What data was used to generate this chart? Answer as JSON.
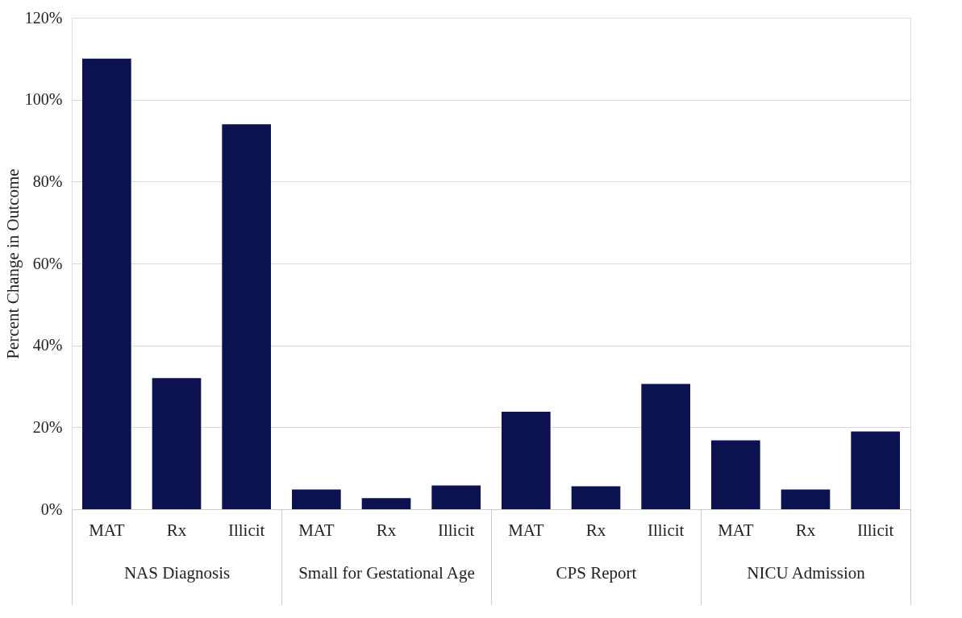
{
  "chart_data": {
    "type": "bar",
    "ylabel": "Percent Change in Outcome",
    "categories": [
      "NAS Diagnosis",
      "Small for Gestational Age",
      "CPS Report",
      "NICU Admission"
    ],
    "series": [
      {
        "name": "MAT",
        "color": "#0c1250",
        "values": [
          110,
          4.8,
          23.8,
          16.8
        ]
      },
      {
        "name": "Rx",
        "color": "#0c1250",
        "values": [
          32,
          2.7,
          5.6,
          4.8
        ]
      },
      {
        "name": "Illicit",
        "color": "#0c1250",
        "values": [
          94,
          5.8,
          30.6,
          19
        ]
      }
    ],
    "ylim": [
      0,
      120
    ],
    "yticks": [
      {
        "value": 0,
        "label": "0%"
      },
      {
        "value": 20,
        "label": "20%"
      },
      {
        "value": 40,
        "label": "40%"
      },
      {
        "value": 60,
        "label": "60%"
      },
      {
        "value": 80,
        "label": "80%"
      },
      {
        "value": 100,
        "label": "100%"
      },
      {
        "value": 120,
        "label": "120%"
      }
    ],
    "grid": "y"
  }
}
